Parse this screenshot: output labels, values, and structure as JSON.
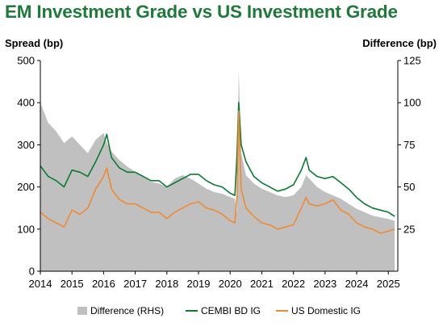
{
  "colors": {
    "title": "#1f7a3a",
    "difference": "#c0c0c0",
    "cembi": "#0b7a32",
    "us": "#ef8a33"
  },
  "chart_data": {
    "type": "line",
    "title": "EM Investment Grade vs US Investment Grade",
    "ylabel": "Spread (bp)",
    "y2label": "Difference (bp)",
    "ylim": [
      0,
      500
    ],
    "y2lim": [
      0,
      125
    ],
    "yticks": [
      0,
      100,
      200,
      300,
      400,
      500
    ],
    "y2ticks": [
      25,
      50,
      75,
      100,
      125
    ],
    "xlim": [
      2014,
      2025.3
    ],
    "xticks": [
      "2014",
      "2015",
      "2016",
      "2017",
      "2018",
      "2019",
      "2020",
      "2021",
      "2022",
      "2023",
      "2024",
      "2025"
    ],
    "legend": "bottom",
    "x": [
      2014.0,
      2014.25,
      2014.5,
      2014.75,
      2015.0,
      2015.25,
      2015.5,
      2015.75,
      2016.0,
      2016.1,
      2016.25,
      2016.5,
      2016.75,
      2017.0,
      2017.25,
      2017.5,
      2017.75,
      2018.0,
      2018.25,
      2018.5,
      2018.75,
      2019.0,
      2019.25,
      2019.5,
      2019.75,
      2020.0,
      2020.15,
      2020.22,
      2020.27,
      2020.35,
      2020.5,
      2020.75,
      2021.0,
      2021.25,
      2021.5,
      2021.75,
      2022.0,
      2022.25,
      2022.4,
      2022.5,
      2022.75,
      2023.0,
      2023.25,
      2023.5,
      2023.75,
      2024.0,
      2024.25,
      2024.5,
      2024.75,
      2025.0,
      2025.2
    ],
    "series": [
      {
        "name": "Difference (RHS)",
        "axis": "right",
        "kind": "area",
        "values": [
          100,
          88,
          83,
          76,
          80,
          75,
          70,
          78,
          82,
          76,
          71,
          66,
          62,
          59,
          56,
          53,
          52,
          50,
          55,
          57,
          55,
          52,
          49,
          47,
          46,
          44,
          43,
          35,
          120,
          70,
          57,
          52,
          49,
          47,
          45,
          44,
          45,
          50,
          57,
          55,
          50,
          47,
          45,
          43,
          40,
          37,
          35,
          33,
          32,
          31,
          30
        ]
      },
      {
        "name": "CEMBI BD IG",
        "axis": "left",
        "kind": "line",
        "values": [
          250,
          225,
          215,
          200,
          240,
          235,
          225,
          260,
          300,
          325,
          270,
          245,
          235,
          235,
          225,
          215,
          215,
          200,
          210,
          220,
          230,
          230,
          215,
          205,
          200,
          185,
          180,
          280,
          400,
          300,
          260,
          225,
          210,
          200,
          190,
          195,
          205,
          240,
          270,
          240,
          225,
          220,
          225,
          210,
          195,
          175,
          160,
          150,
          145,
          140,
          130
        ]
      },
      {
        "name": "US Domestic IG",
        "axis": "left",
        "kind": "line",
        "values": [
          140,
          125,
          115,
          105,
          145,
          135,
          150,
          195,
          225,
          245,
          195,
          170,
          160,
          160,
          150,
          140,
          140,
          125,
          140,
          150,
          160,
          165,
          150,
          145,
          135,
          120,
          115,
          180,
          380,
          195,
          150,
          130,
          115,
          110,
          100,
          105,
          110,
          150,
          175,
          160,
          155,
          160,
          170,
          145,
          135,
          115,
          105,
          100,
          90,
          95,
          100
        ]
      }
    ]
  }
}
